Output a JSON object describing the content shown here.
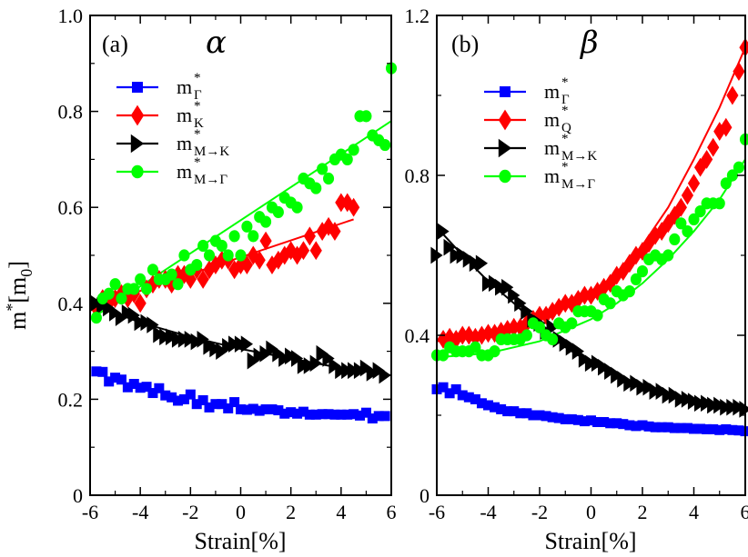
{
  "chart_data": [
    {
      "type": "scatter",
      "panel_label": "(a)",
      "greek": "α",
      "xlabel": "Strain[%]",
      "ylabel_base": "m",
      "ylabel_sup": "*",
      "ylabel_bracket_open": "[m",
      "ylabel_sub": "0",
      "ylabel_bracket_close": "]",
      "xlim": [
        -6,
        6
      ],
      "ylim": [
        0,
        1.0
      ],
      "xticks": [
        -6,
        -4,
        -2,
        0,
        2,
        4,
        6
      ],
      "xtick_labels": [
        "-6",
        "-4",
        "-2",
        "0",
        "2",
        "4",
        "6"
      ],
      "yticks": [
        0,
        0.2,
        0.4,
        0.6,
        0.8,
        1.0
      ],
      "ytick_labels": [
        "0",
        "0.2",
        "0.4",
        "0.6",
        "0.8",
        "1.0"
      ],
      "legend_position": "top-left",
      "series": [
        {
          "legend_main": "m",
          "legend_sub": "Γ",
          "legend_sup": "*",
          "color": "#0000ff",
          "marker": "square",
          "fit": false,
          "x": [
            -5.75,
            -5.5,
            -5.25,
            -5,
            -4.75,
            -4.5,
            -4.25,
            -4,
            -3.75,
            -3.5,
            -3.25,
            -3,
            -2.75,
            -2.5,
            -2.25,
            -2,
            -1.75,
            -1.5,
            -1.25,
            -1,
            -0.75,
            -0.5,
            -0.25,
            0,
            0.25,
            0.5,
            0.75,
            1,
            1.25,
            1.5,
            1.75,
            2,
            2.25,
            2.5,
            2.75,
            3,
            3.25,
            3.5,
            3.75,
            4,
            4.25,
            4.5,
            4.75,
            5,
            5.25,
            5.5,
            5.75
          ],
          "y": [
            0.258,
            0.257,
            0.237,
            0.245,
            0.241,
            0.225,
            0.232,
            0.224,
            0.226,
            0.213,
            0.223,
            0.208,
            0.204,
            0.197,
            0.2,
            0.21,
            0.19,
            0.198,
            0.183,
            0.19,
            0.19,
            0.181,
            0.194,
            0.179,
            0.178,
            0.18,
            0.176,
            0.179,
            0.179,
            0.177,
            0.17,
            0.173,
            0.17,
            0.174,
            0.168,
            0.168,
            0.169,
            0.169,
            0.168,
            0.168,
            0.168,
            0.169,
            0.166,
            0.172,
            0.16,
            0.165,
            0.165
          ],
          "fit_x": [],
          "fit_y": []
        },
        {
          "legend_main": "m",
          "legend_sub": "K",
          "legend_sup": "*",
          "color": "#ff0000",
          "marker": "diamond",
          "fit": true,
          "x": [
            -5.75,
            -5.5,
            -5.25,
            -5,
            -4.75,
            -4.5,
            -4.25,
            -4,
            -3.75,
            -3.5,
            -3.25,
            -3,
            -2.75,
            -2.5,
            -2.25,
            -2,
            -1.75,
            -1.5,
            -1.25,
            -1,
            -0.75,
            -0.5,
            -0.25,
            0,
            0.25,
            0.5,
            0.75,
            1,
            1.25,
            1.5,
            1.75,
            2,
            2.25,
            2.5,
            2.75,
            3,
            3.25,
            3.5,
            3.75,
            4,
            4.25,
            4.5
          ],
          "y": [
            0.39,
            0.41,
            0.4,
            0.41,
            0.42,
            0.41,
            0.42,
            0.4,
            0.43,
            0.44,
            0.45,
            0.45,
            0.44,
            0.46,
            0.46,
            0.45,
            0.47,
            0.45,
            0.47,
            0.48,
            0.49,
            0.49,
            0.47,
            0.48,
            0.48,
            0.5,
            0.49,
            0.53,
            0.48,
            0.49,
            0.5,
            0.51,
            0.5,
            0.51,
            0.54,
            0.51,
            0.55,
            0.56,
            0.55,
            0.61,
            0.61,
            0.6
          ],
          "fit_x": [
            -5.75,
            4.5
          ],
          "fit_y": [
            0.395,
            0.575
          ]
        },
        {
          "legend_main": "m",
          "legend_sub": "M→K",
          "legend_sup": "*",
          "color": "#000000",
          "marker": "triangle-right",
          "fit": true,
          "x": [
            -5.75,
            -5.5,
            -5.25,
            -5,
            -4.75,
            -4.5,
            -4.25,
            -4,
            -3.75,
            -3.5,
            -3.25,
            -3,
            -2.75,
            -2.5,
            -2.25,
            -2,
            -1.75,
            -1.5,
            -1.25,
            -1,
            -0.75,
            -0.5,
            -0.25,
            0,
            0.25,
            0.5,
            0.75,
            1,
            1.25,
            1.5,
            1.75,
            2,
            2.25,
            2.5,
            2.75,
            3,
            3.25,
            3.5,
            3.75,
            4,
            4.25,
            4.5,
            4.75,
            5,
            5.25,
            5.5,
            5.75
          ],
          "y": [
            0.4,
            0.395,
            0.39,
            0.38,
            0.37,
            0.38,
            0.375,
            0.36,
            0.36,
            0.355,
            0.335,
            0.33,
            0.33,
            0.325,
            0.325,
            0.325,
            0.32,
            0.325,
            0.31,
            0.305,
            0.3,
            0.31,
            0.315,
            0.315,
            0.315,
            0.28,
            0.29,
            0.295,
            0.305,
            0.295,
            0.285,
            0.29,
            0.285,
            0.27,
            0.27,
            0.275,
            0.295,
            0.285,
            0.27,
            0.26,
            0.26,
            0.26,
            0.26,
            0.265,
            0.255,
            0.26,
            0.25
          ],
          "fit_x": [
            -6,
            -4,
            -2,
            0,
            2,
            4,
            6
          ],
          "fit_y": [
            0.4,
            0.36,
            0.33,
            0.305,
            0.285,
            0.265,
            0.25
          ]
        },
        {
          "legend_main": "m",
          "legend_sub": "M→Γ",
          "legend_sup": "*",
          "color": "#00ff00",
          "marker": "circle",
          "fit": true,
          "x": [
            -5.75,
            -5.5,
            -5.25,
            -5,
            -4.75,
            -4.5,
            -4.25,
            -4,
            -3.75,
            -3.5,
            -3.25,
            -3,
            -2.75,
            -2.5,
            -2.25,
            -2,
            -1.75,
            -1.5,
            -1.25,
            -1,
            -0.75,
            -0.5,
            -0.25,
            0,
            0.25,
            0.5,
            0.75,
            1,
            1.25,
            1.5,
            1.75,
            2,
            2.25,
            2.5,
            2.75,
            3,
            3.25,
            3.5,
            3.75,
            4,
            4.25,
            4.5,
            4.75,
            5,
            5.25,
            5.5,
            5.75,
            6
          ],
          "y": [
            0.37,
            0.41,
            0.42,
            0.44,
            0.41,
            0.43,
            0.43,
            0.45,
            0.43,
            0.47,
            0.45,
            0.45,
            0.46,
            0.44,
            0.5,
            0.47,
            0.48,
            0.52,
            0.5,
            0.53,
            0.52,
            0.5,
            0.54,
            0.5,
            0.56,
            0.54,
            0.58,
            0.57,
            0.6,
            0.59,
            0.62,
            0.61,
            0.6,
            0.66,
            0.65,
            0.64,
            0.68,
            0.66,
            0.7,
            0.71,
            0.7,
            0.72,
            0.79,
            0.79,
            0.75,
            0.74,
            0.73,
            0.89
          ],
          "fit_x": [
            -5.75,
            6
          ],
          "fit_y": [
            0.375,
            0.78
          ]
        }
      ]
    },
    {
      "type": "scatter",
      "panel_label": "(b)",
      "greek": "β",
      "xlabel": "Strain[%]",
      "xlim": [
        -6,
        6
      ],
      "ylim": [
        0,
        1.2
      ],
      "xticks": [
        -6,
        -4,
        -2,
        0,
        2,
        4,
        6
      ],
      "xtick_labels": [
        "-6",
        "-4",
        "-2",
        "0",
        "2",
        "4",
        "6"
      ],
      "yticks": [
        0,
        0.4,
        0.8,
        1.2
      ],
      "ytick_labels": [
        "0",
        "0.4",
        "0.8",
        "1.2"
      ],
      "legend_position": "top-left",
      "series": [
        {
          "legend_main": "m",
          "legend_sub": "Γ",
          "legend_sup": "*",
          "color": "#0000ff",
          "marker": "square",
          "fit": false,
          "x": [
            -6,
            -5.75,
            -5.5,
            -5.25,
            -5,
            -4.75,
            -4.5,
            -4.25,
            -4,
            -3.75,
            -3.5,
            -3.25,
            -3,
            -2.75,
            -2.5,
            -2.25,
            -2,
            -1.75,
            -1.5,
            -1.25,
            -1,
            -0.75,
            -0.5,
            -0.25,
            0,
            0.25,
            0.5,
            0.75,
            1,
            1.25,
            1.5,
            1.75,
            2,
            2.25,
            2.5,
            2.75,
            3,
            3.25,
            3.5,
            3.75,
            4,
            4.25,
            4.5,
            4.75,
            5,
            5.25,
            5.5,
            5.75,
            6
          ],
          "y": [
            0.265,
            0.27,
            0.255,
            0.265,
            0.25,
            0.245,
            0.24,
            0.23,
            0.225,
            0.22,
            0.215,
            0.21,
            0.21,
            0.205,
            0.205,
            0.2,
            0.2,
            0.198,
            0.195,
            0.193,
            0.19,
            0.19,
            0.188,
            0.185,
            0.187,
            0.183,
            0.183,
            0.18,
            0.18,
            0.178,
            0.175,
            0.173,
            0.175,
            0.172,
            0.17,
            0.17,
            0.17,
            0.168,
            0.168,
            0.168,
            0.166,
            0.166,
            0.165,
            0.165,
            0.163,
            0.165,
            0.163,
            0.162,
            0.16
          ],
          "fit_x": [],
          "fit_y": []
        },
        {
          "legend_main": "m",
          "legend_sub": "Q",
          "legend_sup": "*",
          "color": "#ff0000",
          "marker": "diamond",
          "fit": true,
          "x": [
            -5.75,
            -5.5,
            -5.25,
            -5,
            -4.75,
            -4.5,
            -4.25,
            -4,
            -3.75,
            -3.5,
            -3.25,
            -3,
            -2.75,
            -2.5,
            -2.25,
            -2,
            -1.75,
            -1.5,
            -1.25,
            -1,
            -0.75,
            -0.5,
            -0.25,
            0,
            0.25,
            0.5,
            0.75,
            1,
            1.25,
            1.5,
            1.75,
            2,
            2.25,
            2.5,
            2.75,
            3,
            3.25,
            3.5,
            3.75,
            4,
            4.25,
            4.5,
            4.75,
            5,
            5.25,
            5.5,
            5.75,
            6
          ],
          "y": [
            0.39,
            0.395,
            0.39,
            0.4,
            0.4,
            0.395,
            0.4,
            0.405,
            0.405,
            0.41,
            0.415,
            0.42,
            0.42,
            0.43,
            0.44,
            0.45,
            0.45,
            0.46,
            0.47,
            0.48,
            0.48,
            0.49,
            0.5,
            0.5,
            0.51,
            0.52,
            0.53,
            0.55,
            0.56,
            0.58,
            0.6,
            0.61,
            0.63,
            0.65,
            0.66,
            0.68,
            0.7,
            0.72,
            0.75,
            0.78,
            0.82,
            0.84,
            0.87,
            0.91,
            0.92,
            1.0,
            1.06,
            1.12
          ],
          "fit_x": [
            -6,
            -4,
            -2,
            0,
            1,
            2,
            3,
            4,
            5,
            6
          ],
          "fit_y": [
            0.385,
            0.4,
            0.44,
            0.5,
            0.555,
            0.625,
            0.72,
            0.84,
            0.97,
            1.12
          ]
        },
        {
          "legend_main": "m",
          "legend_sub": "M→K",
          "legend_sup": "*",
          "color": "#000000",
          "marker": "triangle-right",
          "fit": true,
          "x": [
            -6,
            -5.75,
            -5.5,
            -5.25,
            -5,
            -4.75,
            -4.5,
            -4.25,
            -4,
            -3.75,
            -3.5,
            -3.25,
            -3,
            -2.75,
            -2.5,
            -2.25,
            -2,
            -1.75,
            -1.5,
            -1.25,
            -1,
            -0.75,
            -0.5,
            -0.25,
            0,
            0.25,
            0.5,
            0.75,
            1,
            1.25,
            1.5,
            1.75,
            2,
            2.25,
            2.5,
            2.75,
            3,
            3.25,
            3.5,
            3.75,
            4,
            4.25,
            4.5,
            4.75,
            5,
            5.25,
            5.5,
            5.75,
            6
          ],
          "y": [
            0.6,
            0.66,
            0.62,
            0.6,
            0.6,
            0.59,
            0.58,
            0.58,
            0.53,
            0.53,
            0.52,
            0.52,
            0.5,
            0.48,
            0.46,
            0.44,
            0.43,
            0.41,
            0.42,
            0.39,
            0.38,
            0.37,
            0.36,
            0.34,
            0.33,
            0.33,
            0.32,
            0.31,
            0.3,
            0.29,
            0.28,
            0.28,
            0.27,
            0.27,
            0.26,
            0.26,
            0.25,
            0.25,
            0.24,
            0.24,
            0.235,
            0.23,
            0.23,
            0.225,
            0.225,
            0.22,
            0.22,
            0.22,
            0.215
          ],
          "fit_x": [
            -6,
            -5,
            -4,
            -3,
            -2,
            -1,
            0,
            1,
            2,
            3,
            4,
            5,
            6
          ],
          "fit_y": [
            0.67,
            0.6,
            0.535,
            0.48,
            0.42,
            0.37,
            0.33,
            0.295,
            0.27,
            0.25,
            0.235,
            0.225,
            0.215
          ]
        },
        {
          "legend_main": "m",
          "legend_sub": "M→Γ",
          "legend_sup": "*",
          "color": "#00ff00",
          "marker": "circle",
          "fit": true,
          "x": [
            -6,
            -5.75,
            -5.5,
            -5.25,
            -5,
            -4.75,
            -4.5,
            -4.25,
            -4,
            -3.75,
            -3.5,
            -3.25,
            -3,
            -2.75,
            -2.5,
            -2.25,
            -2,
            -1.75,
            -1.5,
            -1.25,
            -1,
            -0.75,
            -0.5,
            -0.25,
            0,
            0.25,
            0.5,
            0.75,
            1,
            1.25,
            1.5,
            1.75,
            2,
            2.25,
            2.5,
            2.75,
            3,
            3.25,
            3.5,
            3.75,
            4,
            4.25,
            4.5,
            4.75,
            5,
            5.25,
            5.5,
            5.75,
            6
          ],
          "y": [
            0.35,
            0.35,
            0.37,
            0.36,
            0.36,
            0.36,
            0.37,
            0.35,
            0.35,
            0.36,
            0.39,
            0.39,
            0.39,
            0.39,
            0.4,
            0.43,
            0.42,
            0.4,
            0.39,
            0.43,
            0.42,
            0.43,
            0.46,
            0.46,
            0.46,
            0.45,
            0.49,
            0.48,
            0.51,
            0.5,
            0.51,
            0.54,
            0.56,
            0.59,
            0.6,
            0.59,
            0.6,
            0.64,
            0.68,
            0.66,
            0.69,
            0.71,
            0.73,
            0.73,
            0.73,
            0.78,
            0.8,
            0.82,
            0.89
          ],
          "fit_x": [
            -6,
            -4,
            -2,
            0,
            1,
            2,
            3,
            4,
            5,
            6
          ],
          "fit_y": [
            0.345,
            0.355,
            0.385,
            0.44,
            0.48,
            0.53,
            0.59,
            0.66,
            0.74,
            0.84
          ]
        }
      ]
    }
  ]
}
